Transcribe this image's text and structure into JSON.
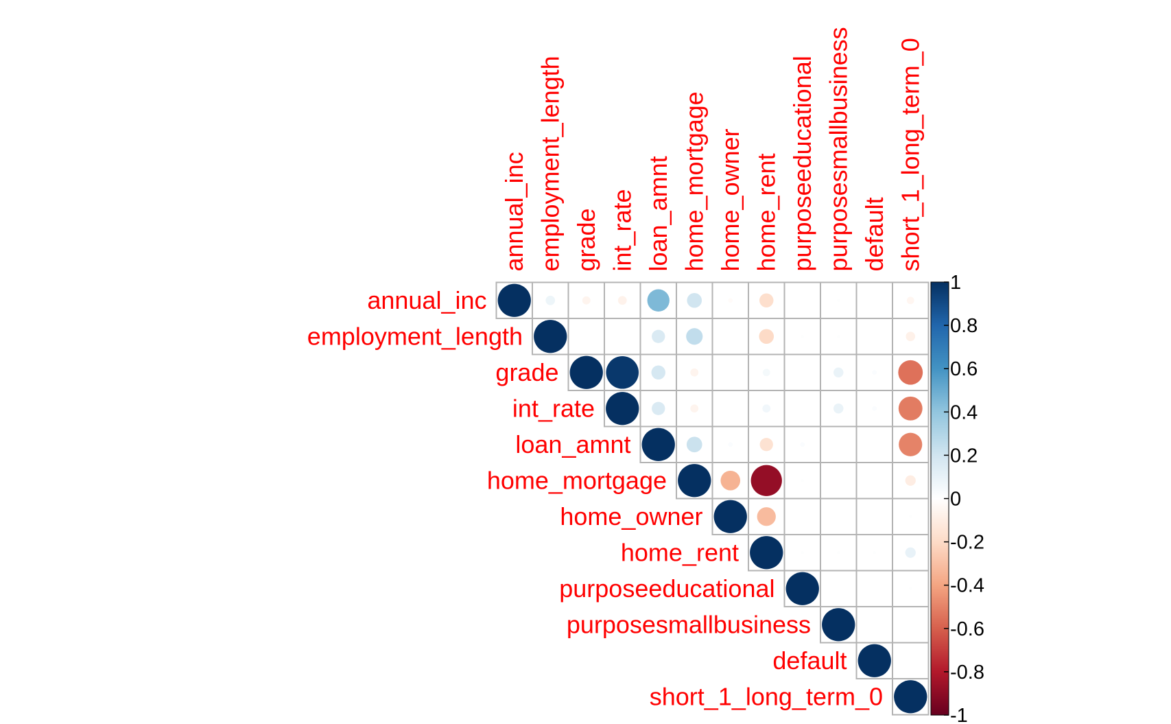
{
  "chart_data": {
    "type": "heatmap",
    "style": "circle-upper-triangle",
    "variables": [
      "annual_inc",
      "employment_length",
      "grade",
      "int_rate",
      "loan_amnt",
      "home_mortgage",
      "home_owner",
      "home_rent",
      "purposeeducational",
      "purposesmallbusiness",
      "default",
      "short_1_long_term_0"
    ],
    "matrix": [
      [
        1,
        0.08,
        -0.06,
        -0.07,
        0.45,
        0.2,
        -0.02,
        -0.18,
        0,
        0.01,
        0,
        -0.05
      ],
      [
        null,
        1,
        0,
        0,
        0.16,
        0.25,
        0,
        -0.2,
        0.01,
        0.01,
        0,
        -0.08
      ],
      [
        null,
        null,
        1,
        0.97,
        0.18,
        -0.06,
        0,
        0.05,
        0,
        0.09,
        0.02,
        -0.55
      ],
      [
        null,
        null,
        null,
        1,
        0.16,
        -0.06,
        0,
        0.06,
        0,
        0.09,
        0.02,
        -0.52
      ],
      [
        null,
        null,
        null,
        null,
        1,
        0.22,
        0.02,
        -0.16,
        0.02,
        0,
        0,
        -0.5
      ],
      [
        null,
        null,
        null,
        null,
        null,
        1,
        -0.35,
        -0.88,
        0.01,
        0,
        0,
        -0.1
      ],
      [
        null,
        null,
        null,
        null,
        null,
        null,
        1,
        -0.32,
        0,
        0,
        0,
        0.01
      ],
      [
        null,
        null,
        null,
        null,
        null,
        null,
        null,
        1,
        0.01,
        0.01,
        0.01,
        0.1
      ],
      [
        null,
        null,
        null,
        null,
        null,
        null,
        null,
        null,
        1,
        0,
        0,
        0.01
      ],
      [
        null,
        null,
        null,
        null,
        null,
        null,
        null,
        null,
        null,
        1,
        0,
        0
      ],
      [
        null,
        null,
        null,
        null,
        null,
        null,
        null,
        null,
        null,
        null,
        1,
        0
      ],
      [
        null,
        null,
        null,
        null,
        null,
        null,
        null,
        null,
        null,
        null,
        null,
        1
      ]
    ],
    "colorbar": {
      "ticks": [
        "1",
        "0.8",
        "0.6",
        "0.4",
        "0.2",
        "0",
        "-0.2",
        "-0.4",
        "-0.6",
        "-0.8",
        "-1"
      ],
      "range": [
        -1,
        1
      ]
    },
    "colors": {
      "label": "#ff0000",
      "grid": "#b3b3b3",
      "stops": [
        "#67001f",
        "#b2182b",
        "#d6604d",
        "#f4a582",
        "#fddbc7",
        "#ffffff",
        "#d1e5f0",
        "#92c5de",
        "#4393c3",
        "#2166ac",
        "#053061"
      ]
    }
  }
}
